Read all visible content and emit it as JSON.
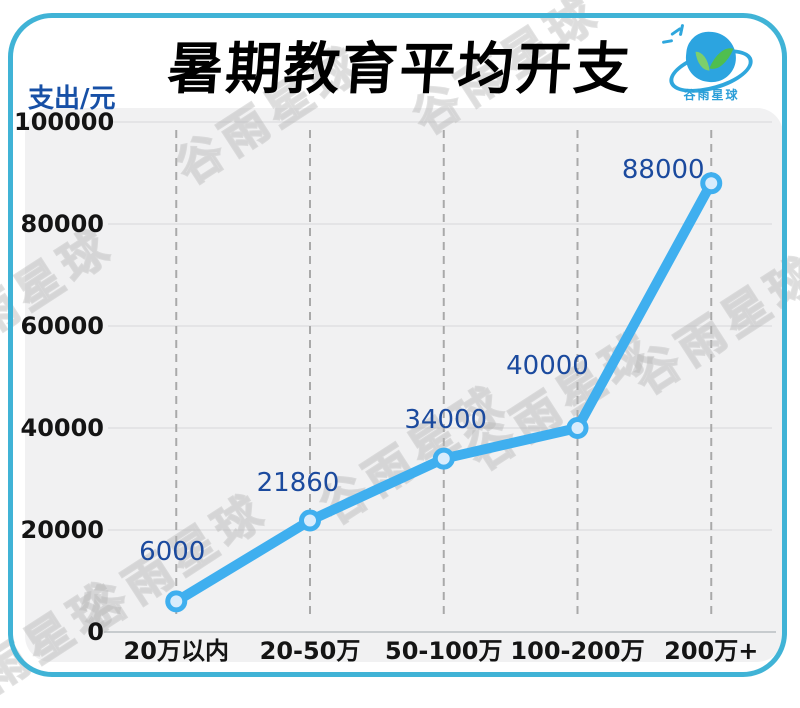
{
  "header": {
    "title": "暑期教育平均开支"
  },
  "y_axis_label": "支出/元",
  "watermark_text": "谷雨星球",
  "logo": {
    "name": "谷雨星球"
  },
  "colors": {
    "card_border": "#40b3d6",
    "panel_bg": "#f1f1f2",
    "line": "#3fafef",
    "marker_fill": "#d8ecfc",
    "data_label": "#1b4a9e",
    "axis_label": "#141414",
    "y_axis_title": "#1750a6"
  },
  "chart_data": {
    "type": "line",
    "title": "暑期教育平均开支",
    "xlabel": "",
    "ylabel": "支出/元",
    "categories": [
      "20万以内",
      "20-50万",
      "50-100万",
      "100-200万",
      "200万+"
    ],
    "values": [
      6000,
      21860,
      34000,
      40000,
      88000
    ],
    "data_labels": [
      "6000",
      "21860",
      "34000",
      "40000",
      "88000"
    ],
    "ylim": [
      0,
      100000
    ],
    "yticks": [
      0,
      20000,
      40000,
      60000,
      80000,
      100000
    ],
    "grid": "vertical dashed gray per category; horizontal solid light gray per ytick",
    "legend": "none"
  }
}
